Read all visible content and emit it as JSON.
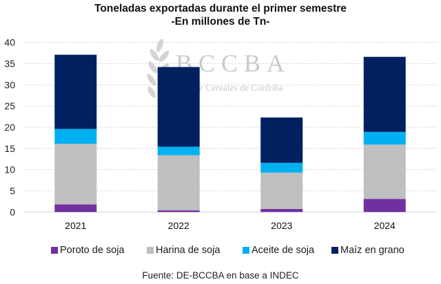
{
  "chart_data": {
    "type": "bar",
    "stacked": true,
    "title": "Toneladas exportadas durante el primer semestre",
    "subtitle": "-En millones de Tn-",
    "xlabel": "",
    "ylabel": "",
    "ylim": [
      0,
      40
    ],
    "yticks": [
      0,
      5,
      10,
      15,
      20,
      25,
      30,
      35,
      40
    ],
    "ytick_labels": [
      "0",
      "5",
      "10",
      "15",
      "20",
      "25",
      "30",
      "35",
      "40"
    ],
    "grid": true,
    "legend_position": "bottom",
    "categories": [
      "2021",
      "2022",
      "2023",
      "2024"
    ],
    "series": [
      {
        "name": "Poroto de soja",
        "color": "#7030A0",
        "values": [
          1.8,
          0.4,
          0.7,
          3.1
        ]
      },
      {
        "name": "Harina de soja",
        "color": "#BFBFBF",
        "values": [
          14.3,
          13.0,
          8.6,
          12.8
        ]
      },
      {
        "name": "Aceite de soja",
        "color": "#00B0F0",
        "values": [
          3.5,
          2.0,
          2.3,
          3.0
        ]
      },
      {
        "name": "Maíz en grano",
        "color": "#002060",
        "values": [
          17.5,
          18.8,
          10.7,
          17.7
        ]
      }
    ],
    "source": "Fuente: DE-BCCBA en base a INDEC"
  },
  "watermark": {
    "logo_text": "BCCBA",
    "logo_subtext": "Bolsa de Cereales de Córdoba"
  },
  "legend": {
    "items": [
      {
        "label": "Poroto de soja",
        "color": "#7030A0"
      },
      {
        "label": "Harina de soja",
        "color": "#BFBFBF"
      },
      {
        "label": "Aceite de soja",
        "color": "#00B0F0"
      },
      {
        "label": "Maíz en grano",
        "color": "#002060"
      }
    ]
  }
}
